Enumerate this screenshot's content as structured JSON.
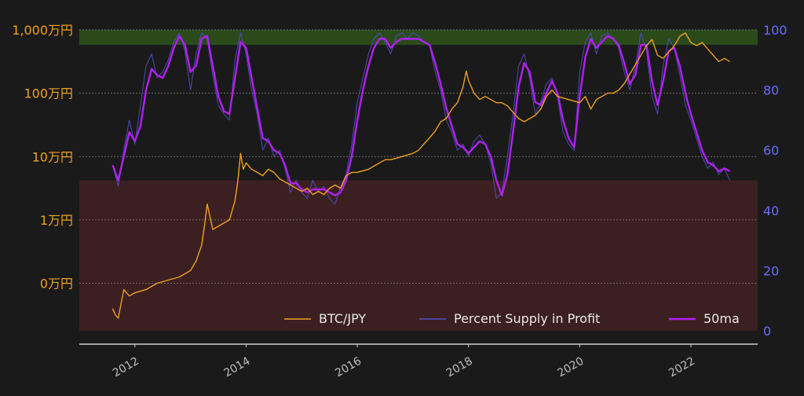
{
  "chart_data": {
    "type": "line",
    "title": "",
    "xlabel": "",
    "ylabel_left": "",
    "ylabel_right": "",
    "x_range": [
      2011.0,
      2023.2
    ],
    "left_axis": {
      "scale": "log",
      "unit": "JPY",
      "range_log10": [
        2.25,
        7.0
      ],
      "ticks": [
        {
          "label": "1,000万円",
          "log10": 7
        },
        {
          "label": "100万円",
          "log10": 6
        },
        {
          "label": "10万円",
          "log10": 5
        },
        {
          "label": "1万円",
          "log10": 4
        },
        {
          "label": "0万円",
          "log10": 3
        }
      ]
    },
    "right_axis": {
      "scale": "linear",
      "range": [
        0,
        100
      ],
      "ticks": [
        0,
        20,
        40,
        60,
        80,
        100
      ]
    },
    "x_ticks": [
      "2012",
      "2014",
      "2016",
      "2018",
      "2020",
      "2022"
    ],
    "x_tick_values": [
      2012,
      2014,
      2016,
      2018,
      2020,
      2022
    ],
    "bands": [
      {
        "axis": "right",
        "from": 95,
        "to": 100,
        "color": "#2a4a1a"
      },
      {
        "axis": "right",
        "from": 0,
        "to": 50,
        "color": "#3c1f20"
      }
    ],
    "grid": {
      "horizontal": true,
      "style": "dotted",
      "color": "#9a9a9a"
    },
    "legend": {
      "position": "bottom-right",
      "entries": [
        {
          "label": "BTC/JPY",
          "color": "#f0a020"
        },
        {
          "label": "Percent Supply in Profit",
          "color": "#5050c8"
        },
        {
          "label": "50ma",
          "color": "#b020f0"
        }
      ]
    },
    "series": [
      {
        "name": "BTC/JPY",
        "axis": "left",
        "color": "#f0a020",
        "x": [
          2011.6,
          2011.65,
          2011.7,
          2011.8,
          2011.9,
          2012.0,
          2012.2,
          2012.4,
          2012.6,
          2012.8,
          2013.0,
          2013.1,
          2013.2,
          2013.25,
          2013.3,
          2013.4,
          2013.5,
          2013.6,
          2013.7,
          2013.8,
          2013.85,
          2013.9,
          2013.95,
          2014.0,
          2014.1,
          2014.2,
          2014.3,
          2014.4,
          2014.5,
          2014.6,
          2014.7,
          2014.8,
          2014.9,
          2015.0,
          2015.1,
          2015.2,
          2015.3,
          2015.4,
          2015.5,
          2015.6,
          2015.7,
          2015.8,
          2015.9,
          2016.0,
          2016.2,
          2016.4,
          2016.5,
          2016.6,
          2016.8,
          2017.0,
          2017.1,
          2017.2,
          2017.3,
          2017.4,
          2017.5,
          2017.6,
          2017.7,
          2017.8,
          2017.9,
          2017.96,
          2018.0,
          2018.1,
          2018.2,
          2018.3,
          2018.4,
          2018.5,
          2018.6,
          2018.7,
          2018.8,
          2018.9,
          2019.0,
          2019.1,
          2019.2,
          2019.3,
          2019.4,
          2019.5,
          2019.6,
          2019.8,
          2020.0,
          2020.1,
          2020.2,
          2020.3,
          2020.4,
          2020.5,
          2020.6,
          2020.7,
          2020.8,
          2020.9,
          2021.0,
          2021.1,
          2021.2,
          2021.3,
          2021.4,
          2021.5,
          2021.6,
          2021.7,
          2021.8,
          2021.9,
          2022.0,
          2022.1,
          2022.2,
          2022.3,
          2022.4,
          2022.5,
          2022.6,
          2022.7
        ],
        "y_log10": [
          2.6,
          2.5,
          2.45,
          2.9,
          2.8,
          2.85,
          2.9,
          3.0,
          3.05,
          3.1,
          3.2,
          3.35,
          3.6,
          3.9,
          4.25,
          3.85,
          3.9,
          3.95,
          4.0,
          4.3,
          4.6,
          5.05,
          4.8,
          4.9,
          4.8,
          4.75,
          4.7,
          4.8,
          4.75,
          4.65,
          4.6,
          4.55,
          4.5,
          4.45,
          4.5,
          4.4,
          4.45,
          4.4,
          4.5,
          4.55,
          4.5,
          4.7,
          4.75,
          4.75,
          4.8,
          4.9,
          4.95,
          4.95,
          5.0,
          5.05,
          5.1,
          5.2,
          5.3,
          5.4,
          5.55,
          5.6,
          5.75,
          5.85,
          6.1,
          6.35,
          6.2,
          6.0,
          5.9,
          5.95,
          5.9,
          5.85,
          5.85,
          5.8,
          5.7,
          5.6,
          5.55,
          5.6,
          5.65,
          5.75,
          5.95,
          6.05,
          5.95,
          5.9,
          5.85,
          5.95,
          5.75,
          5.9,
          5.95,
          6.0,
          6.0,
          6.05,
          6.15,
          6.3,
          6.45,
          6.6,
          6.75,
          6.85,
          6.6,
          6.55,
          6.65,
          6.75,
          6.9,
          6.95,
          6.8,
          6.75,
          6.8,
          6.7,
          6.6,
          6.5,
          6.55,
          6.5
        ]
      },
      {
        "name": "Percent Supply in Profit",
        "axis": "right",
        "color": "#5050c8",
        "x": [
          2011.6,
          2011.7,
          2011.8,
          2011.9,
          2012.0,
          2012.1,
          2012.2,
          2012.3,
          2012.4,
          2012.5,
          2012.6,
          2012.7,
          2012.8,
          2012.9,
          2013.0,
          2013.1,
          2013.2,
          2013.3,
          2013.4,
          2013.5,
          2013.6,
          2013.7,
          2013.8,
          2013.9,
          2014.0,
          2014.1,
          2014.2,
          2014.3,
          2014.4,
          2014.5,
          2014.6,
          2014.7,
          2014.8,
          2014.9,
          2015.0,
          2015.1,
          2015.2,
          2015.3,
          2015.4,
          2015.5,
          2015.6,
          2015.7,
          2015.8,
          2015.9,
          2016.0,
          2016.1,
          2016.2,
          2016.3,
          2016.4,
          2016.5,
          2016.6,
          2016.7,
          2016.8,
          2016.9,
          2017.0,
          2017.1,
          2017.2,
          2017.3,
          2017.4,
          2017.5,
          2017.6,
          2017.7,
          2017.8,
          2017.9,
          2018.0,
          2018.1,
          2018.2,
          2018.3,
          2018.4,
          2018.5,
          2018.6,
          2018.7,
          2018.8,
          2018.9,
          2019.0,
          2019.1,
          2019.2,
          2019.3,
          2019.4,
          2019.5,
          2019.6,
          2019.7,
          2019.8,
          2019.9,
          2020.0,
          2020.1,
          2020.2,
          2020.3,
          2020.4,
          2020.5,
          2020.6,
          2020.7,
          2020.8,
          2020.9,
          2021.0,
          2021.1,
          2021.2,
          2021.3,
          2021.4,
          2021.5,
          2021.6,
          2021.7,
          2021.8,
          2021.9,
          2022.0,
          2022.1,
          2022.2,
          2022.3,
          2022.4,
          2022.5,
          2022.6,
          2022.7
        ],
        "values": [
          55,
          48,
          60,
          70,
          62,
          75,
          88,
          92,
          84,
          86,
          90,
          96,
          99,
          93,
          80,
          92,
          99,
          97,
          85,
          75,
          72,
          70,
          90,
          99,
          92,
          80,
          72,
          60,
          64,
          58,
          60,
          54,
          46,
          50,
          46,
          44,
          50,
          46,
          48,
          44,
          42,
          48,
          52,
          62,
          76,
          84,
          92,
          97,
          99,
          96,
          92,
          98,
          99,
          97,
          99,
          98,
          96,
          95,
          86,
          80,
          70,
          66,
          60,
          62,
          58,
          63,
          65,
          62,
          56,
          44,
          46,
          58,
          72,
          88,
          92,
          84,
          72,
          76,
          82,
          84,
          78,
          66,
          62,
          60,
          86,
          96,
          99,
          92,
          98,
          99,
          97,
          94,
          86,
          80,
          88,
          99,
          93,
          78,
          72,
          88,
          97,
          94,
          85,
          75,
          70,
          64,
          58,
          54,
          56,
          52,
          54,
          50
        ]
      },
      {
        "name": "50ma",
        "axis": "right",
        "color": "#b020f0",
        "x": [
          2011.6,
          2011.7,
          2011.8,
          2011.9,
          2012.0,
          2012.1,
          2012.2,
          2012.3,
          2012.4,
          2012.5,
          2012.6,
          2012.7,
          2012.8,
          2012.9,
          2013.0,
          2013.1,
          2013.2,
          2013.3,
          2013.4,
          2013.5,
          2013.6,
          2013.7,
          2013.8,
          2013.9,
          2014.0,
          2014.1,
          2014.2,
          2014.3,
          2014.4,
          2014.5,
          2014.6,
          2014.7,
          2014.8,
          2014.9,
          2015.0,
          2015.1,
          2015.2,
          2015.3,
          2015.4,
          2015.5,
          2015.6,
          2015.7,
          2015.8,
          2015.9,
          2016.0,
          2016.1,
          2016.2,
          2016.3,
          2016.4,
          2016.5,
          2016.6,
          2016.7,
          2016.8,
          2016.9,
          2017.0,
          2017.1,
          2017.2,
          2017.3,
          2017.4,
          2017.5,
          2017.6,
          2017.7,
          2017.8,
          2017.9,
          2018.0,
          2018.1,
          2018.2,
          2018.3,
          2018.4,
          2018.5,
          2018.6,
          2018.7,
          2018.8,
          2018.9,
          2019.0,
          2019.1,
          2019.2,
          2019.3,
          2019.4,
          2019.5,
          2019.6,
          2019.7,
          2019.8,
          2019.9,
          2020.0,
          2020.1,
          2020.2,
          2020.3,
          2020.4,
          2020.5,
          2020.6,
          2020.7,
          2020.8,
          2020.9,
          2021.0,
          2021.1,
          2021.2,
          2021.3,
          2021.4,
          2021.5,
          2021.6,
          2021.7,
          2021.8,
          2021.9,
          2022.0,
          2022.1,
          2022.2,
          2022.3,
          2022.4,
          2022.5,
          2022.6,
          2022.7
        ],
        "values": [
          55,
          50,
          58,
          66,
          63,
          68,
          80,
          87,
          85,
          84,
          88,
          94,
          98,
          95,
          86,
          88,
          97,
          98,
          88,
          78,
          73,
          72,
          84,
          96,
          94,
          84,
          74,
          64,
          63,
          60,
          59,
          55,
          49,
          49,
          47,
          46,
          47,
          47,
          47,
          46,
          45,
          46,
          50,
          58,
          70,
          80,
          88,
          94,
          97,
          97,
          94,
          96,
          97,
          97,
          97,
          97,
          96,
          95,
          89,
          82,
          74,
          68,
          62,
          61,
          59,
          61,
          63,
          62,
          58,
          50,
          45,
          52,
          66,
          81,
          89,
          86,
          76,
          75,
          79,
          83,
          79,
          70,
          64,
          61,
          78,
          91,
          97,
          94,
          96,
          98,
          97,
          95,
          89,
          82,
          85,
          95,
          95,
          83,
          75,
          83,
          93,
          94,
          88,
          79,
          72,
          66,
          60,
          56,
          55,
          53,
          54,
          53
        ]
      }
    ]
  }
}
